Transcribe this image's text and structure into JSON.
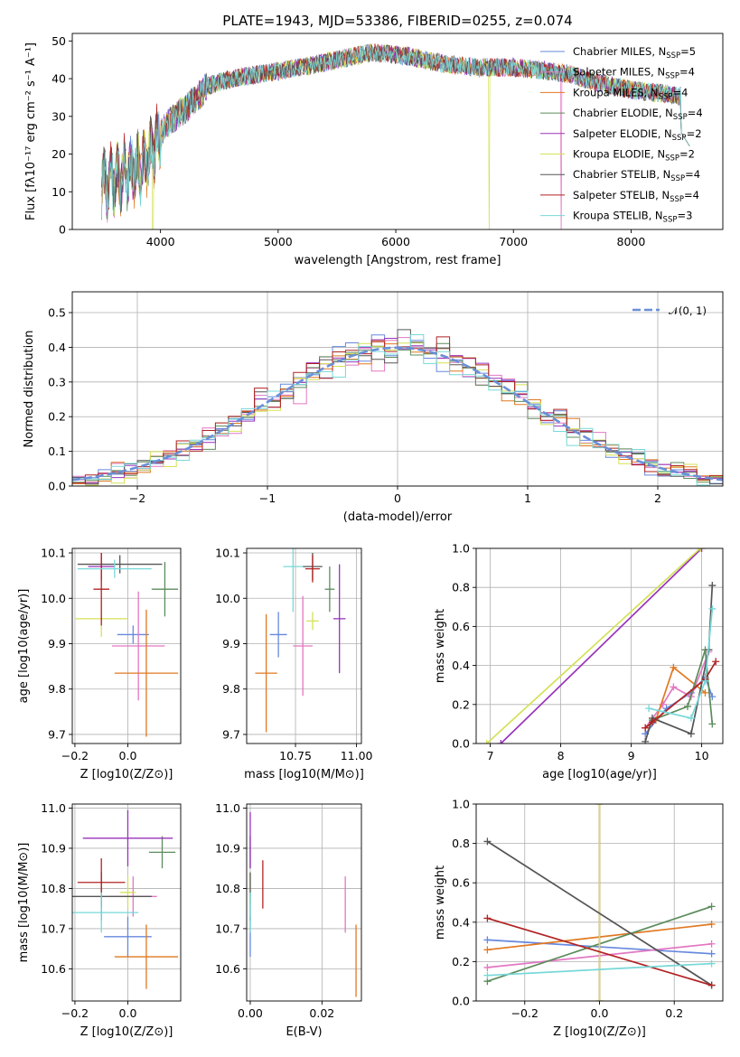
{
  "chart_data": [
    {
      "id": "spectrum",
      "type": "line",
      "title": "PLATE=1943, MJD=53386, FIBERID=0255, z=0.074",
      "xlabel": "wavelength [Angstrom, rest frame]",
      "ylabel": "Flux [fλ10⁻¹⁷ erg cm⁻² s⁻¹ A⁻¹]",
      "xlim": [
        3250,
        8780
      ],
      "ylim": [
        0,
        52
      ],
      "xticks": [
        "4000",
        "5000",
        "6000",
        "7000",
        "8000"
      ],
      "yticks": [
        "0",
        "10",
        "20",
        "30",
        "40",
        "50"
      ],
      "legend_position": "top-right",
      "continuum": {
        "x": [
          3500,
          3700,
          3850,
          3950,
          4050,
          4250,
          4400,
          4600,
          4800,
          5000,
          5200,
          5500,
          5800,
          6100,
          6400,
          6700,
          7000,
          7300,
          7500,
          7700,
          8000,
          8300,
          8500
        ],
        "y": [
          12,
          15,
          17,
          22,
          28,
          33,
          38,
          40,
          41,
          42,
          43,
          45,
          47,
          46,
          44,
          43,
          43,
          42,
          41,
          39,
          37,
          36,
          35
        ]
      },
      "series": [
        {
          "name": "Chabrier MILES, N_SSP=5",
          "color": "#6688dd"
        },
        {
          "name": "Salpeter MILES, N_SSP=4",
          "color": "#e377c2"
        },
        {
          "name": "Kroupa MILES, N_SSP=4",
          "color": "#e07820"
        },
        {
          "name": "Chabrier ELODIE, N_SSP=4",
          "color": "#5c8c5c"
        },
        {
          "name": "Salpeter ELODIE, N_SSP=2",
          "color": "#9933bb"
        },
        {
          "name": "Kroupa ELODIE, N_SSP=2",
          "color": "#d4e157"
        },
        {
          "name": "Chabrier STELIB, N_SSP=4",
          "color": "#555555"
        },
        {
          "name": "Salpeter STELIB, N_SSP=4",
          "color": "#b22222"
        },
        {
          "name": "Kroupa STELIB, N_SSP=3",
          "color": "#77d8d8"
        }
      ]
    },
    {
      "id": "residuals",
      "type": "line",
      "xlabel": "(data-model)/error",
      "ylabel": "Normed distribution",
      "xlim": [
        -2.5,
        2.5
      ],
      "ylim": [
        0,
        0.56
      ],
      "xticks": [
        "−2",
        "−1",
        "0",
        "1",
        "2"
      ],
      "yticks": [
        "0.0",
        "0.1",
        "0.2",
        "0.3",
        "0.4",
        "0.5"
      ],
      "legend": "𝒩(0, 1)",
      "bin_width": 0.1,
      "bin_start": -2.5
    },
    {
      "id": "age-vs-Z",
      "type": "scatter",
      "xlabel": "Z [log10(Z/Z⊙)]",
      "ylabel": "age  [log10(age/yr)]",
      "xlim": [
        -0.21,
        0.2
      ],
      "ylim": [
        9.68,
        10.11
      ],
      "xticks": [
        "−0.2",
        "0.0"
      ],
      "yticks": [
        "9.7",
        "9.8",
        "9.9",
        "10.0",
        "10.1"
      ],
      "points": [
        {
          "series": "Chabrier MILES",
          "color": "#6688dd",
          "x": 0.02,
          "y": 9.92,
          "xerr": 0.06,
          "yerr": 0.02
        },
        {
          "series": "Salpeter MILES",
          "color": "#e377c2",
          "x": 0.04,
          "y": 9.895,
          "xerr": 0.1,
          "yerr": 0.12
        },
        {
          "series": "Kroupa MILES",
          "color": "#e07820",
          "x": 0.07,
          "y": 9.835,
          "xerr": 0.12,
          "yerr": 0.14
        },
        {
          "series": "Chabrier ELODIE",
          "color": "#5c8c5c",
          "x": 0.14,
          "y": 10.02,
          "xerr": 0.05,
          "yerr": 0.06
        },
        {
          "series": "Salpeter ELODIE",
          "color": "#9933bb",
          "x": -0.1,
          "y": 10.07,
          "xerr": 0.05,
          "yerr": 0.03
        },
        {
          "series": "Kroupa ELODIE",
          "color": "#d4e157",
          "x": -0.1,
          "y": 9.955,
          "xerr": 0.1,
          "yerr": 0.04
        },
        {
          "series": "Chabrier STELIB",
          "color": "#555555",
          "x": -0.03,
          "y": 10.075,
          "xerr": 0.16,
          "yerr": 0.02
        },
        {
          "series": "Salpeter STELIB",
          "color": "#b22222",
          "x": -0.1,
          "y": 10.02,
          "xerr": 0.03,
          "yerr": 0.08
        },
        {
          "series": "Kroupa STELIB",
          "color": "#77d8d8",
          "x": -0.05,
          "y": 10.065,
          "xerr": 0.14,
          "yerr": 0.02
        }
      ]
    },
    {
      "id": "age-vs-mass",
      "type": "scatter",
      "xlabel": "mass [log10(M/M⊙)]",
      "xlim": [
        10.55,
        11.02
      ],
      "ylim": [
        9.68,
        10.11
      ],
      "xticks": [
        "10.75",
        "11.00"
      ],
      "yticks": [
        "9.7",
        "9.8",
        "9.9",
        "10.0",
        "10.1"
      ],
      "points": [
        {
          "series": "Chabrier MILES",
          "color": "#6688dd",
          "x": 10.68,
          "y": 9.92,
          "xerr": 0.035,
          "yerr": 0.05
        },
        {
          "series": "Salpeter MILES",
          "color": "#e377c2",
          "x": 10.78,
          "y": 9.895,
          "xerr": 0.04,
          "yerr": 0.11
        },
        {
          "series": "Kroupa MILES",
          "color": "#e07820",
          "x": 10.63,
          "y": 9.835,
          "xerr": 0.045,
          "yerr": 0.13
        },
        {
          "series": "Chabrier ELODIE",
          "color": "#5c8c5c",
          "x": 10.89,
          "y": 10.02,
          "xerr": 0.02,
          "yerr": 0.05
        },
        {
          "series": "Salpeter ELODIE",
          "color": "#9933bb",
          "x": 10.93,
          "y": 9.955,
          "xerr": 0.025,
          "yerr": 0.12
        },
        {
          "series": "Kroupa ELODIE",
          "color": "#d4e157",
          "x": 10.82,
          "y": 9.95,
          "xerr": 0.025,
          "yerr": 0.02
        },
        {
          "series": "Chabrier STELIB",
          "color": "#555555",
          "x": 10.82,
          "y": 10.07,
          "xerr": 0.04,
          "yerr": 0.03
        },
        {
          "series": "Salpeter STELIB",
          "color": "#b22222",
          "x": 10.82,
          "y": 10.065,
          "xerr": 0.03,
          "yerr": 0.03
        },
        {
          "series": "Kroupa STELIB",
          "color": "#77d8d8",
          "x": 10.74,
          "y": 10.07,
          "xerr": 0.04,
          "yerr": 0.1
        }
      ]
    },
    {
      "id": "weight-vs-age",
      "type": "line",
      "xlabel": "age  [log10(age/yr)]",
      "ylabel": "mass weight",
      "xlim": [
        6.8,
        10.3
      ],
      "ylim": [
        0,
        1
      ],
      "xticks": [
        "7",
        "8",
        "9",
        "10"
      ],
      "yticks": [
        "0.0",
        "0.2",
        "0.4",
        "0.6",
        "0.8",
        "1.0"
      ],
      "series": [
        {
          "name": "Chabrier MILES",
          "color": "#6688dd",
          "x": [
            9.2,
            9.5,
            9.85,
            10.05,
            10.15
          ],
          "y": [
            0.05,
            0.18,
            0.26,
            0.34,
            0.24
          ]
        },
        {
          "name": "Salpeter MILES",
          "color": "#e377c2",
          "x": [
            9.2,
            9.45,
            9.6,
            9.85,
            10.1
          ],
          "y": [
            0.08,
            0.2,
            0.29,
            0.24,
            0.47
          ]
        },
        {
          "name": "Kroupa MILES",
          "color": "#e07820",
          "x": [
            9.2,
            9.35,
            9.6,
            10.05
          ],
          "y": [
            0.08,
            0.12,
            0.39,
            0.26
          ]
        },
        {
          "name": "Chabrier ELODIE",
          "color": "#5c8c5c",
          "x": [
            9.3,
            9.8,
            10.05,
            10.15
          ],
          "y": [
            0.12,
            0.19,
            0.48,
            0.1
          ]
        },
        {
          "name": "Salpeter ELODIE",
          "color": "#9933bb",
          "x": [
            7.15,
            10.0
          ],
          "y": [
            0.0,
            1.0
          ]
        },
        {
          "name": "Kroupa ELODIE",
          "color": "#d4e157",
          "x": [
            6.95,
            9.98
          ],
          "y": [
            0.0,
            1.0
          ]
        },
        {
          "name": "Chabrier STELIB",
          "color": "#555555",
          "x": [
            9.2,
            9.3,
            9.85,
            10.1,
            10.15
          ],
          "y": [
            0.01,
            0.13,
            0.05,
            0.48,
            0.81
          ]
        },
        {
          "name": "Salpeter STELIB",
          "color": "#b22222",
          "x": [
            9.2,
            9.3,
            10.05,
            10.2
          ],
          "y": [
            0.08,
            0.11,
            0.33,
            0.42
          ]
        },
        {
          "name": "Kroupa STELIB",
          "color": "#77d8d8",
          "x": [
            9.25,
            9.85,
            10.05,
            10.15
          ],
          "y": [
            0.18,
            0.13,
            0.32,
            0.69
          ]
        }
      ]
    },
    {
      "id": "mass-vs-Z",
      "type": "scatter",
      "xlabel": "Z [log10(Z/Z⊙)]",
      "ylabel": "mass [log10(M/M⊙)]",
      "xlim": [
        -0.21,
        0.2
      ],
      "ylim": [
        10.52,
        11.01
      ],
      "xticks": [
        "−0.2",
        "0.0"
      ],
      "yticks": [
        "10.6",
        "10.7",
        "10.8",
        "10.9",
        "11.0"
      ],
      "points": [
        {
          "series": "Chabrier MILES",
          "color": "#6688dd",
          "x": 0.0,
          "y": 10.68,
          "xerr": 0.09,
          "yerr": 0.05
        },
        {
          "series": "Salpeter MILES",
          "color": "#e377c2",
          "x": 0.02,
          "y": 10.78,
          "xerr": 0.09,
          "yerr": 0.05
        },
        {
          "series": "Kroupa MILES",
          "color": "#e07820",
          "x": 0.07,
          "y": 10.63,
          "xerr": 0.12,
          "yerr": 0.08
        },
        {
          "series": "Chabrier ELODIE",
          "color": "#5c8c5c",
          "x": 0.13,
          "y": 10.89,
          "xerr": 0.05,
          "yerr": 0.04
        },
        {
          "series": "Salpeter ELODIE",
          "color": "#9933bb",
          "x": 0.0,
          "y": 10.925,
          "xerr": 0.17,
          "yerr": 0.07
        },
        {
          "series": "Kroupa ELODIE",
          "color": "#d4e157",
          "x": 0.0,
          "y": 10.79,
          "xerr": 0.03,
          "yerr": 0.04
        },
        {
          "series": "Chabrier STELIB",
          "color": "#555555",
          "x": -0.1,
          "y": 10.78,
          "xerr": 0.19,
          "yerr": 0.06
        },
        {
          "series": "Salpeter STELIB",
          "color": "#b22222",
          "x": -0.1,
          "y": 10.815,
          "xerr": 0.09,
          "yerr": 0.06
        },
        {
          "series": "Kroupa STELIB",
          "color": "#77d8d8",
          "x": -0.1,
          "y": 10.74,
          "xerr": 0.14,
          "yerr": 0.05
        }
      ]
    },
    {
      "id": "mass-vs-EBV",
      "type": "scatter",
      "xlabel": "E(B-V)",
      "xlim": [
        -0.001,
        0.031
      ],
      "ylim": [
        10.52,
        11.01
      ],
      "xticks": [
        "0.00",
        "0.02"
      ],
      "yticks": [
        "10.6",
        "10.7",
        "10.8",
        "10.9",
        "11.0"
      ],
      "points": [
        {
          "series": "Chabrier MILES",
          "color": "#6688dd",
          "x": 0.0,
          "y": 10.68,
          "yerr": 0.05
        },
        {
          "series": "Salpeter MILES",
          "color": "#e377c2",
          "x": 0.0265,
          "y": 10.76,
          "yerr": 0.07
        },
        {
          "series": "Kroupa MILES",
          "color": "#e07820",
          "x": 0.0295,
          "y": 10.62,
          "yerr": 0.09
        },
        {
          "series": "Chabrier ELODIE",
          "color": "#5c8c5c",
          "x": 0.0,
          "y": 10.89,
          "yerr": 0.04
        },
        {
          "series": "Salpeter ELODIE",
          "color": "#9933bb",
          "x": 0.0,
          "y": 10.92,
          "yerr": 0.07
        },
        {
          "series": "Kroupa ELODIE",
          "color": "#d4e157",
          "x": 0.0,
          "y": 10.8,
          "yerr": 0.04
        },
        {
          "series": "Chabrier STELIB",
          "color": "#555555",
          "x": 0.0,
          "y": 10.78,
          "yerr": 0.06
        },
        {
          "series": "Salpeter STELIB",
          "color": "#b22222",
          "x": 0.0035,
          "y": 10.81,
          "yerr": 0.06
        },
        {
          "series": "Kroupa STELIB",
          "color": "#77d8d8",
          "x": 0.0,
          "y": 10.74,
          "yerr": 0.05
        }
      ]
    },
    {
      "id": "weight-vs-Z",
      "type": "line",
      "xlabel": "Z [log10(Z/Z⊙)]",
      "ylabel": "mass weight",
      "xlim": [
        -0.33,
        0.33
      ],
      "ylim": [
        0,
        1
      ],
      "xticks": [
        "−0.2",
        "0.0",
        "0.2"
      ],
      "yticks": [
        "0.0",
        "0.2",
        "0.4",
        "0.6",
        "0.8",
        "1.0"
      ],
      "series": [
        {
          "name": "Chabrier MILES",
          "color": "#6688dd",
          "x": [
            -0.3,
            0.3
          ],
          "y": [
            0.31,
            0.24
          ]
        },
        {
          "name": "Salpeter MILES",
          "color": "#e377c2",
          "x": [
            -0.3,
            0.3
          ],
          "y": [
            0.17,
            0.29
          ]
        },
        {
          "name": "Kroupa MILES",
          "color": "#e07820",
          "x": [
            -0.3,
            0.3
          ],
          "y": [
            0.26,
            0.39
          ]
        },
        {
          "name": "Chabrier ELODIE",
          "color": "#5c8c5c",
          "x": [
            -0.3,
            0.3
          ],
          "y": [
            0.1,
            0.48
          ]
        },
        {
          "name": "Salpeter ELODIE",
          "color": "#9933bb",
          "x": [
            0.0,
            0.0
          ],
          "y": [
            0.0,
            1.0
          ]
        },
        {
          "name": "Kroupa ELODIE",
          "color": "#d4e157",
          "x": [
            0.0,
            0.0
          ],
          "y": [
            0.0,
            1.0
          ]
        },
        {
          "name": "Chabrier STELIB",
          "color": "#555555",
          "x": [
            -0.3,
            0.3
          ],
          "y": [
            0.81,
            0.08
          ]
        },
        {
          "name": "Salpeter STELIB",
          "color": "#b22222",
          "x": [
            -0.3,
            0.3
          ],
          "y": [
            0.42,
            0.08
          ]
        },
        {
          "name": "Kroupa STELIB",
          "color": "#77d8d8",
          "x": [
            -0.3,
            0.3
          ],
          "y": [
            0.13,
            0.19
          ]
        }
      ]
    }
  ]
}
